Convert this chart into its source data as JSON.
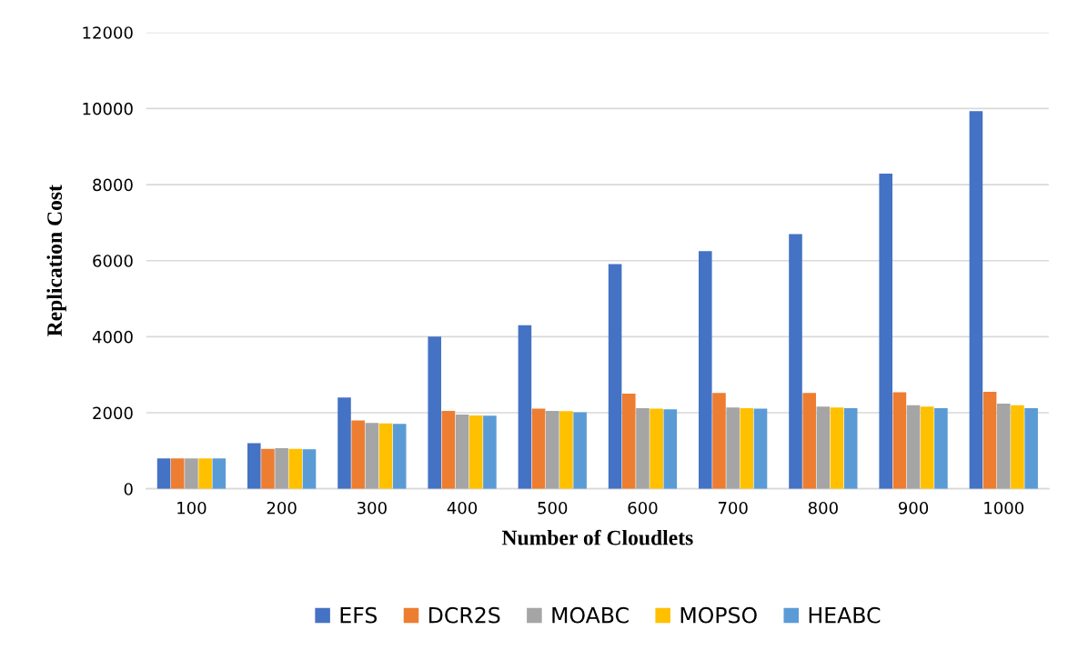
{
  "chart_data": {
    "type": "bar",
    "xlabel": "Number of Cloudlets",
    "ylabel": "Replication Cost",
    "categories": [
      "100",
      "200",
      "300",
      "400",
      "500",
      "600",
      "700",
      "800",
      "900",
      "1000"
    ],
    "series": [
      {
        "name": "EFS",
        "color": "#4472c4",
        "values": [
          800,
          1200,
          2400,
          4000,
          4300,
          5910,
          6250,
          6700,
          8290,
          9930
        ]
      },
      {
        "name": "DCR2S",
        "color": "#ed7d31",
        "values": [
          800,
          1050,
          1800,
          2050,
          2110,
          2500,
          2520,
          2520,
          2540,
          2550
        ]
      },
      {
        "name": "MOABC",
        "color": "#a5a5a5",
        "values": [
          800,
          1070,
          1730,
          1950,
          2050,
          2120,
          2140,
          2160,
          2200,
          2240
        ]
      },
      {
        "name": "MOPSO",
        "color": "#ffc000",
        "values": [
          800,
          1050,
          1720,
          1930,
          2040,
          2110,
          2120,
          2140,
          2160,
          2200
        ]
      },
      {
        "name": "HEABC",
        "color": "#5b9bd5",
        "values": [
          800,
          1040,
          1710,
          1920,
          2010,
          2090,
          2110,
          2120,
          2120,
          2120
        ]
      }
    ],
    "ylim": [
      0,
      12000
    ],
    "yticks": [
      0,
      2000,
      4000,
      6000,
      8000,
      10000,
      12000
    ],
    "grid": "y",
    "legend": "bottom"
  }
}
